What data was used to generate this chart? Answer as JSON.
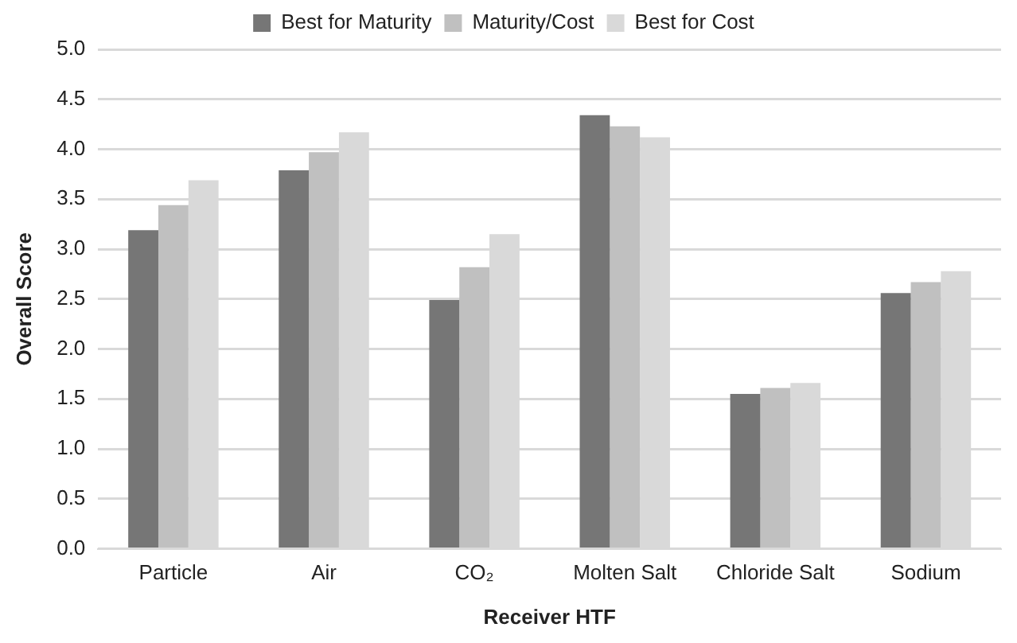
{
  "chart_data": {
    "type": "bar",
    "xlabel": "Receiver HTF",
    "ylabel": "Overall Score",
    "categories": [
      "Particle",
      "Air",
      "CO₂",
      "Molten Salt",
      "Chloride Salt",
      "Sodium"
    ],
    "series": [
      {
        "name": "Best for Maturity",
        "color": "#767676",
        "values": [
          3.19,
          3.79,
          2.49,
          4.34,
          1.55,
          2.56
        ]
      },
      {
        "name": "Maturity/Cost",
        "color": "#c0c0c0",
        "values": [
          3.44,
          3.97,
          2.82,
          4.23,
          1.61,
          2.67
        ]
      },
      {
        "name": "Best for Cost",
        "color": "#d9d9d9",
        "values": [
          3.69,
          4.17,
          3.15,
          4.12,
          1.66,
          2.78
        ]
      }
    ],
    "ylim": [
      0,
      5
    ],
    "yticks": [
      {
        "value": 0,
        "label": "0.0"
      },
      0.5,
      {
        "value": 1,
        "label": "1.0"
      },
      1.5,
      {
        "value": 2,
        "label": "2.0"
      },
      2.5,
      {
        "value": 3,
        "label": "3.0"
      },
      3.5,
      {
        "value": 4,
        "label": "4.0"
      },
      4.5,
      {
        "value": 5,
        "label": "5.0"
      }
    ],
    "grid": "y",
    "legend": "top"
  }
}
